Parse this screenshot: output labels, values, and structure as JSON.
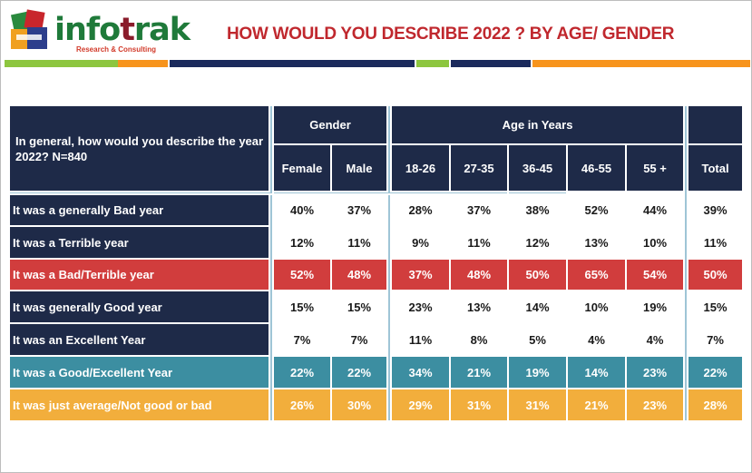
{
  "header": {
    "logo": {
      "name": "infotrak",
      "tagline": "Research & Consulting"
    },
    "title": "HOW WOULD YOU DESCRIBE 2022 ? BY AGE/ GENDER"
  },
  "colors": {
    "navy": "#1e2a48",
    "red": "#d13d3d",
    "teal": "#3c8ea1",
    "orange": "#f2ae3c",
    "title_red": "#c0282e",
    "green": "#8dc63f"
  },
  "table": {
    "question": "In general, how would you describe the year 2022? N=840",
    "group_headers": {
      "gender": "Gender",
      "age": "Age in Years"
    },
    "columns": [
      "Female",
      "Male",
      "18-26",
      "27-35",
      "36-45",
      "46-55",
      "55 +",
      "Total"
    ],
    "rows": [
      {
        "label": "It was a generally Bad year",
        "style": "navy",
        "values": [
          "40%",
          "37%",
          "28%",
          "37%",
          "38%",
          "52%",
          "44%",
          "39%"
        ]
      },
      {
        "label": "It was a Terrible year",
        "style": "navy",
        "values": [
          "12%",
          "11%",
          "9%",
          "11%",
          "12%",
          "13%",
          "10%",
          "11%"
        ]
      },
      {
        "label": "It was a Bad/Terrible year",
        "style": "red",
        "values": [
          "52%",
          "48%",
          "37%",
          "48%",
          "50%",
          "65%",
          "54%",
          "50%"
        ]
      },
      {
        "label": "It was generally Good year",
        "style": "navy",
        "values": [
          "15%",
          "15%",
          "23%",
          "13%",
          "14%",
          "10%",
          "19%",
          "15%"
        ]
      },
      {
        "label": "It  was an Excellent Year",
        "style": "navy",
        "values": [
          "7%",
          "7%",
          "11%",
          "8%",
          "5%",
          "4%",
          "4%",
          "7%"
        ]
      },
      {
        "label": "It was a Good/Excellent Year",
        "style": "teal",
        "values": [
          "22%",
          "22%",
          "34%",
          "21%",
          "19%",
          "14%",
          "23%",
          "22%"
        ]
      },
      {
        "label": "It was just average/Not good or bad",
        "style": "orange",
        "values": [
          "26%",
          "30%",
          "29%",
          "31%",
          "31%",
          "21%",
          "23%",
          "28%"
        ]
      }
    ]
  }
}
